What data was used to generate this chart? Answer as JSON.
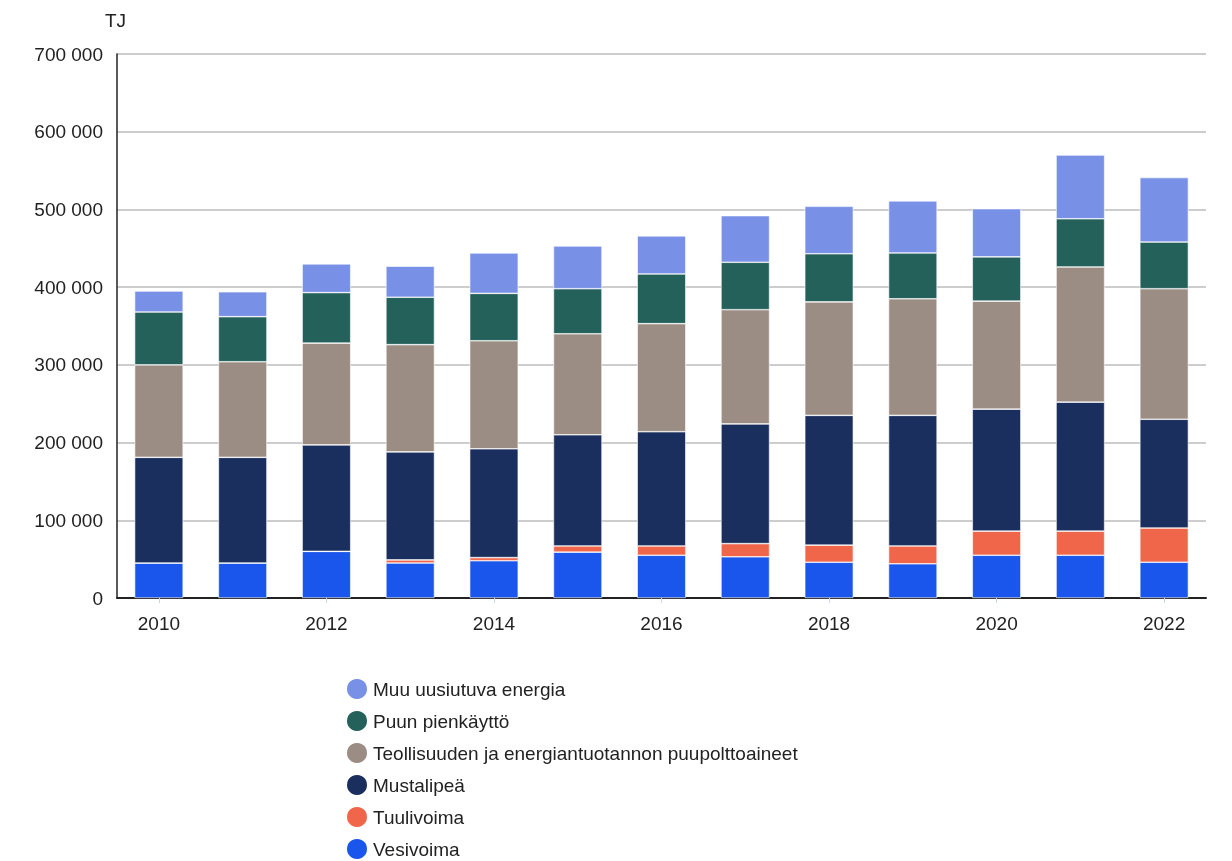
{
  "chart_data": {
    "type": "bar",
    "stacked": true,
    "ylabel": "TJ",
    "categories": [
      "2010",
      null,
      "2012",
      null,
      "2014",
      null,
      "2016",
      null,
      "2018",
      null,
      "2020",
      null,
      "2022"
    ],
    "series": [
      {
        "name": "Vesivoima",
        "color": "#1a56eb",
        "values": [
          45000,
          45000,
          60000,
          45000,
          48000,
          59000,
          55000,
          53000,
          46000,
          44000,
          55000,
          55000,
          46000
        ]
      },
      {
        "name": "Tuulivoima",
        "color": "#f0664b",
        "values": [
          0,
          0,
          0,
          4000,
          4000,
          8000,
          12000,
          17000,
          22000,
          23000,
          31000,
          31000,
          44000
        ]
      },
      {
        "name": "Mustalipeä",
        "color": "#1b2f5e",
        "values": [
          136000,
          136000,
          137000,
          139000,
          140000,
          143000,
          147000,
          154000,
          167000,
          168000,
          157000,
          166000,
          140000
        ]
      },
      {
        "name": "Teollisuuden ja energiantuotannon puupolttoaineet",
        "color": "#9b8d84",
        "values": [
          119000,
          123000,
          131000,
          138000,
          139000,
          130000,
          139000,
          147000,
          146000,
          150000,
          139000,
          174000,
          168000
        ]
      },
      {
        "name": "Puun pienkäyttö",
        "color": "#24615b",
        "values": [
          68000,
          58000,
          65000,
          61000,
          61000,
          58000,
          64000,
          61000,
          62000,
          59000,
          57000,
          62000,
          60000
        ]
      },
      {
        "name": "Muu uusiutuva energia",
        "color": "#7890e6",
        "values": [
          27000,
          32000,
          37000,
          40000,
          52000,
          55000,
          49000,
          60000,
          61000,
          67000,
          62000,
          82000,
          83000
        ]
      }
    ],
    "ylim": [
      0,
      700000
    ],
    "yticks": [
      0,
      {
        "value": 100000,
        "label": "100 000"
      },
      {
        "value": 200000,
        "label": "200 000"
      },
      {
        "value": 300000,
        "label": "300 000"
      },
      {
        "value": 400000,
        "label": "400 000"
      },
      {
        "value": 500000,
        "label": "500 000"
      },
      {
        "value": 600000,
        "label": "600 000"
      },
      {
        "value": 700000,
        "label": "700 000"
      }
    ],
    "grid": "y",
    "legend": "bottom"
  }
}
